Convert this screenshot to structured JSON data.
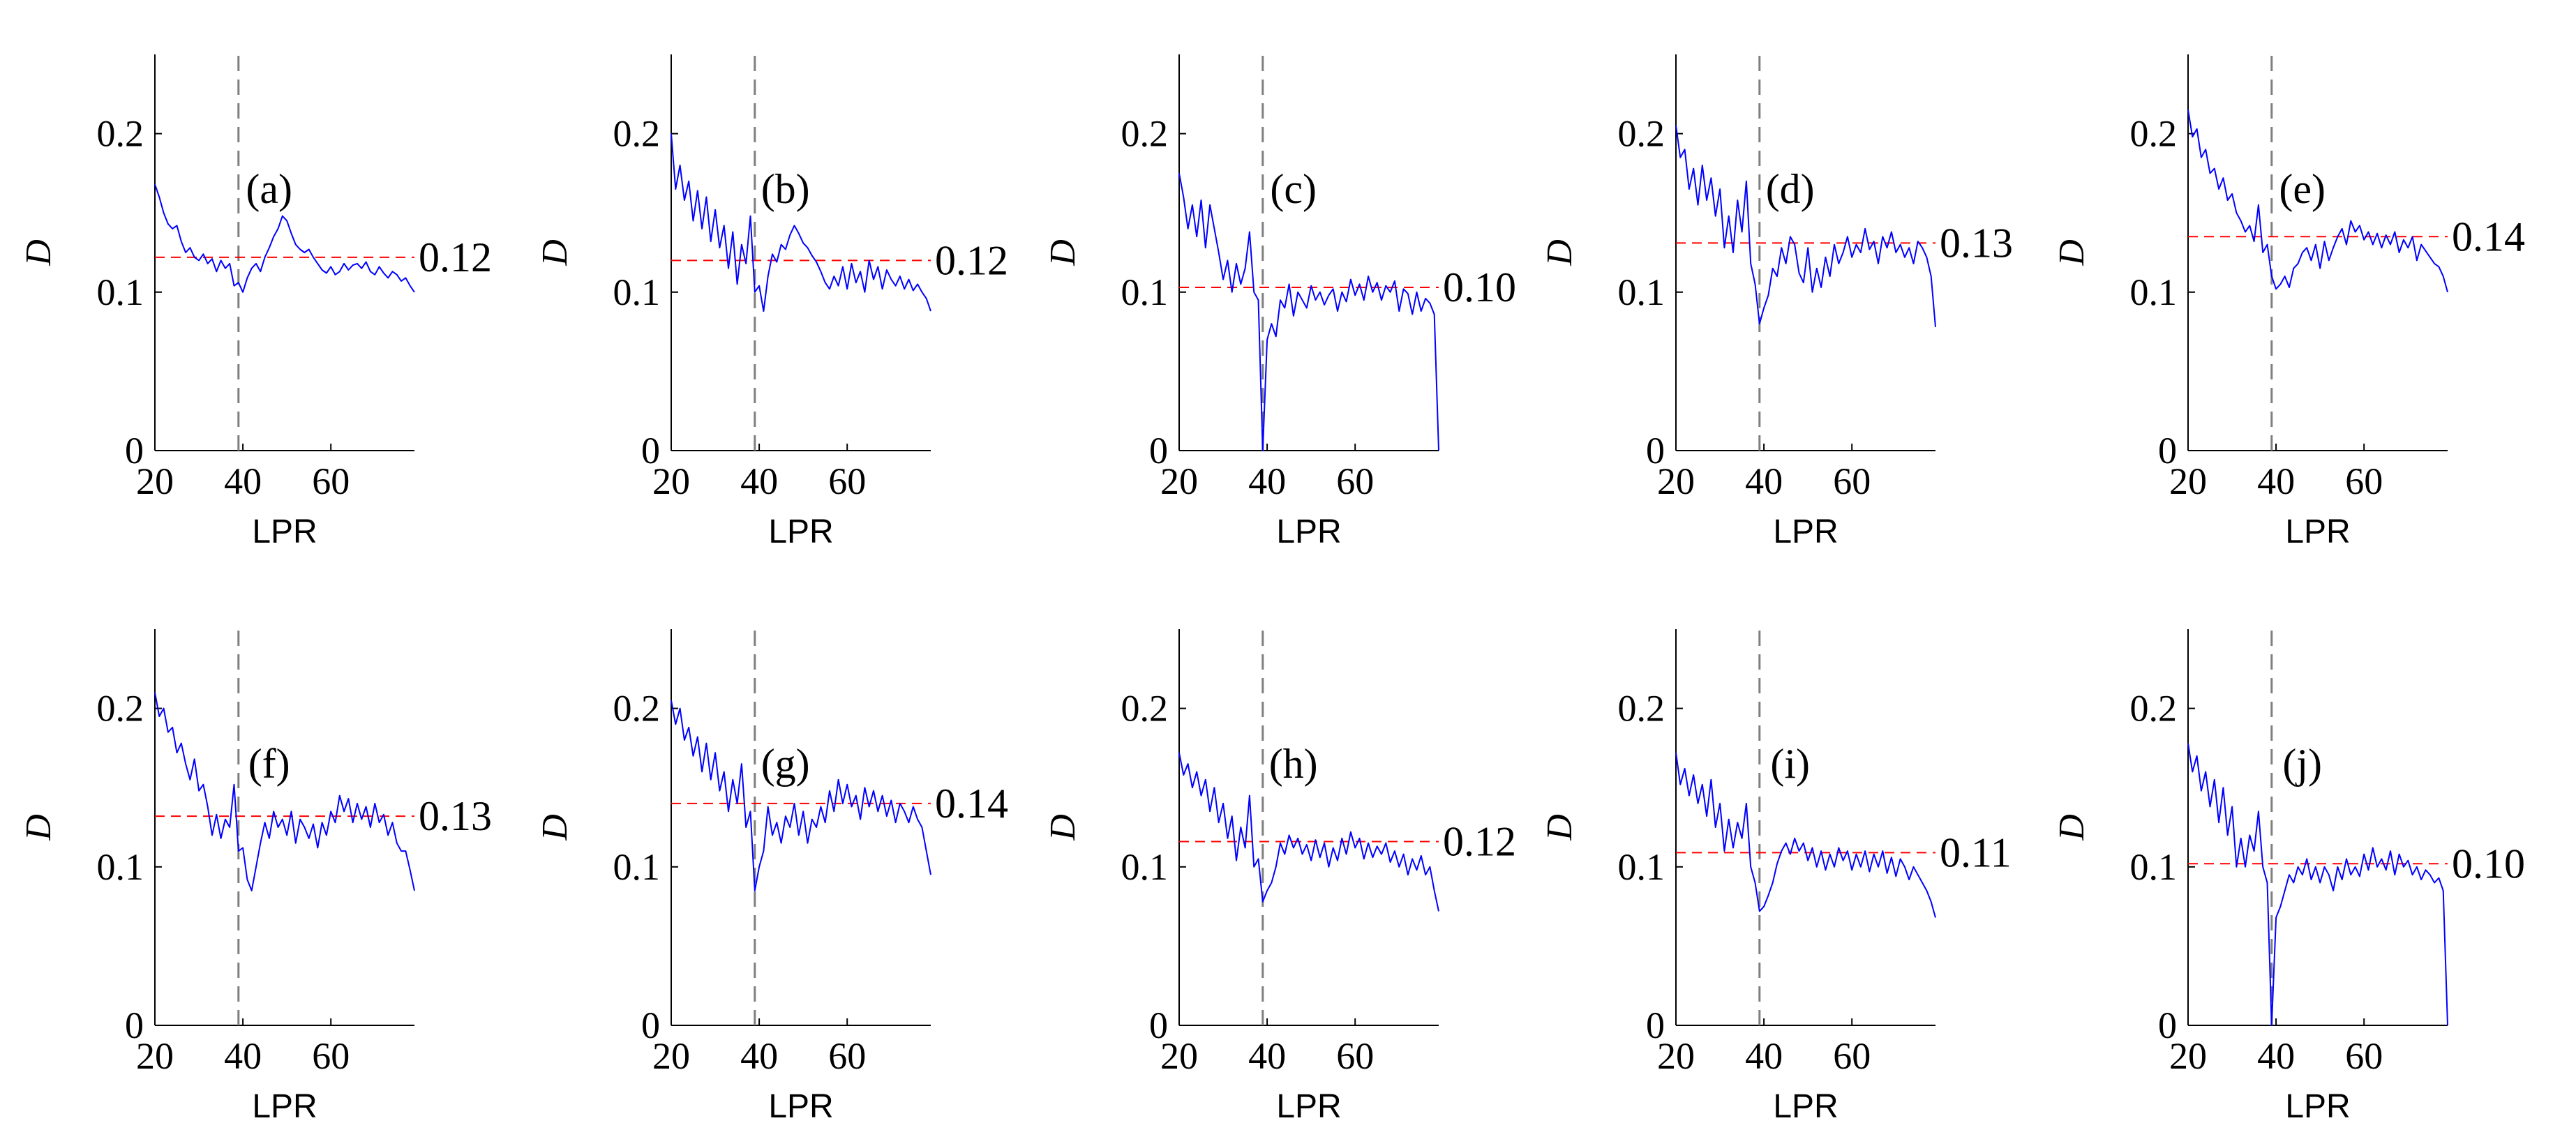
{
  "figure": {
    "background": "#ffffff",
    "axis_color": "#000000",
    "series_color": "#0000ff",
    "ref_line_color": "#ff0000",
    "vline_color": "#7f7f7f"
  },
  "chart_data": [
    {
      "type": "line",
      "panel": "(a)",
      "xlabel": "LPR",
      "ylabel": "D",
      "xlim": [
        20,
        79
      ],
      "ylim": [
        0,
        0.25
      ],
      "xticks": [
        "20",
        "40",
        "60"
      ],
      "yticks": [
        "0",
        "0.1",
        "0.2"
      ],
      "vline_x": 39,
      "ref_value": 0.122,
      "ref_label": "0.12",
      "x_start": 20,
      "x_step": 1,
      "y": [
        0.168,
        0.16,
        0.15,
        0.143,
        0.14,
        0.142,
        0.132,
        0.125,
        0.128,
        0.122,
        0.12,
        0.124,
        0.118,
        0.121,
        0.113,
        0.12,
        0.115,
        0.118,
        0.104,
        0.106,
        0.1,
        0.109,
        0.115,
        0.118,
        0.113,
        0.122,
        0.128,
        0.135,
        0.14,
        0.148,
        0.145,
        0.137,
        0.13,
        0.127,
        0.125,
        0.127,
        0.122,
        0.118,
        0.114,
        0.112,
        0.116,
        0.111,
        0.113,
        0.118,
        0.114,
        0.117,
        0.118,
        0.115,
        0.119,
        0.113,
        0.111,
        0.116,
        0.112,
        0.109,
        0.113,
        0.111,
        0.107,
        0.109,
        0.104,
        0.1
      ]
    },
    {
      "type": "line",
      "panel": "(b)",
      "xlabel": "LPR",
      "ylabel": "D",
      "xlim": [
        20,
        79
      ],
      "ylim": [
        0,
        0.25
      ],
      "xticks": [
        "20",
        "40",
        "60"
      ],
      "yticks": [
        "0",
        "0.1",
        "0.2"
      ],
      "vline_x": 39,
      "ref_value": 0.12,
      "ref_label": "0.12",
      "x_start": 20,
      "x_step": 1,
      "y": [
        0.2,
        0.165,
        0.18,
        0.158,
        0.17,
        0.145,
        0.164,
        0.14,
        0.16,
        0.132,
        0.152,
        0.128,
        0.142,
        0.115,
        0.138,
        0.105,
        0.13,
        0.118,
        0.148,
        0.1,
        0.104,
        0.088,
        0.11,
        0.124,
        0.119,
        0.13,
        0.127,
        0.136,
        0.142,
        0.137,
        0.131,
        0.128,
        0.123,
        0.119,
        0.113,
        0.106,
        0.102,
        0.11,
        0.104,
        0.116,
        0.102,
        0.118,
        0.106,
        0.113,
        0.1,
        0.12,
        0.108,
        0.116,
        0.102,
        0.114,
        0.108,
        0.104,
        0.11,
        0.102,
        0.108,
        0.101,
        0.105,
        0.1,
        0.096,
        0.088
      ]
    },
    {
      "type": "line",
      "panel": "(c)",
      "xlabel": "LPR",
      "ylabel": "D",
      "xlim": [
        20,
        79
      ],
      "ylim": [
        0,
        0.25
      ],
      "xticks": [
        "20",
        "40",
        "60"
      ],
      "yticks": [
        "0",
        "0.1",
        "0.2"
      ],
      "vline_x": 39,
      "ref_value": 0.103,
      "ref_label": "0.10",
      "x_start": 20,
      "x_step": 1,
      "y": [
        0.175,
        0.16,
        0.14,
        0.155,
        0.135,
        0.158,
        0.128,
        0.155,
        0.14,
        0.125,
        0.108,
        0.12,
        0.1,
        0.118,
        0.105,
        0.115,
        0.138,
        0.1,
        0.095,
        0.0,
        0.07,
        0.08,
        0.072,
        0.095,
        0.09,
        0.105,
        0.085,
        0.1,
        0.095,
        0.09,
        0.104,
        0.095,
        0.1,
        0.092,
        0.098,
        0.102,
        0.088,
        0.1,
        0.094,
        0.108,
        0.098,
        0.105,
        0.095,
        0.11,
        0.1,
        0.106,
        0.095,
        0.104,
        0.1,
        0.107,
        0.088,
        0.102,
        0.099,
        0.086,
        0.1,
        0.088,
        0.096,
        0.093,
        0.086,
        0.0
      ]
    },
    {
      "type": "line",
      "panel": "(d)",
      "xlabel": "LPR",
      "ylabel": "D",
      "xlim": [
        20,
        79
      ],
      "ylim": [
        0,
        0.25
      ],
      "xticks": [
        "20",
        "40",
        "60"
      ],
      "yticks": [
        "0",
        "0.1",
        "0.2"
      ],
      "vline_x": 39,
      "ref_value": 0.131,
      "ref_label": "0.13",
      "x_start": 20,
      "x_step": 1,
      "y": [
        0.205,
        0.185,
        0.19,
        0.165,
        0.178,
        0.155,
        0.18,
        0.158,
        0.172,
        0.148,
        0.165,
        0.128,
        0.148,
        0.125,
        0.158,
        0.138,
        0.17,
        0.118,
        0.105,
        0.08,
        0.09,
        0.098,
        0.115,
        0.11,
        0.128,
        0.118,
        0.135,
        0.13,
        0.112,
        0.106,
        0.128,
        0.1,
        0.115,
        0.103,
        0.122,
        0.11,
        0.13,
        0.118,
        0.125,
        0.135,
        0.122,
        0.13,
        0.125,
        0.14,
        0.127,
        0.132,
        0.118,
        0.135,
        0.128,
        0.138,
        0.125,
        0.13,
        0.122,
        0.128,
        0.118,
        0.132,
        0.128,
        0.122,
        0.11,
        0.078
      ]
    },
    {
      "type": "line",
      "panel": "(e)",
      "xlabel": "LPR",
      "ylabel": "D",
      "xlim": [
        20,
        79
      ],
      "ylim": [
        0,
        0.25
      ],
      "xticks": [
        "20",
        "40",
        "60"
      ],
      "yticks": [
        "0",
        "0.1",
        "0.2"
      ],
      "vline_x": 39,
      "ref_value": 0.135,
      "ref_label": "0.14",
      "x_start": 20,
      "x_step": 1,
      "y": [
        0.215,
        0.198,
        0.203,
        0.185,
        0.19,
        0.175,
        0.178,
        0.165,
        0.172,
        0.158,
        0.162,
        0.15,
        0.145,
        0.138,
        0.142,
        0.132,
        0.155,
        0.125,
        0.13,
        0.11,
        0.102,
        0.105,
        0.11,
        0.103,
        0.115,
        0.118,
        0.125,
        0.128,
        0.12,
        0.13,
        0.115,
        0.132,
        0.12,
        0.128,
        0.135,
        0.14,
        0.13,
        0.145,
        0.138,
        0.142,
        0.133,
        0.138,
        0.13,
        0.137,
        0.128,
        0.136,
        0.13,
        0.138,
        0.125,
        0.133,
        0.128,
        0.135,
        0.12,
        0.13,
        0.126,
        0.122,
        0.118,
        0.116,
        0.11,
        0.1
      ]
    },
    {
      "type": "line",
      "panel": "(f)",
      "xlabel": "LPR",
      "ylabel": "D",
      "xlim": [
        20,
        79
      ],
      "ylim": [
        0,
        0.25
      ],
      "xticks": [
        "20",
        "40",
        "60"
      ],
      "yticks": [
        "0",
        "0.1",
        "0.2"
      ],
      "vline_x": 39,
      "ref_value": 0.132,
      "ref_label": "0.13",
      "x_start": 20,
      "x_step": 1,
      "y": [
        0.21,
        0.195,
        0.2,
        0.185,
        0.188,
        0.172,
        0.178,
        0.165,
        0.155,
        0.168,
        0.148,
        0.152,
        0.138,
        0.12,
        0.133,
        0.118,
        0.13,
        0.125,
        0.152,
        0.11,
        0.112,
        0.092,
        0.085,
        0.1,
        0.115,
        0.128,
        0.118,
        0.135,
        0.125,
        0.13,
        0.12,
        0.135,
        0.115,
        0.13,
        0.125,
        0.118,
        0.127,
        0.112,
        0.128,
        0.12,
        0.135,
        0.128,
        0.145,
        0.135,
        0.143,
        0.128,
        0.14,
        0.13,
        0.138,
        0.125,
        0.14,
        0.128,
        0.133,
        0.12,
        0.128,
        0.115,
        0.11,
        0.11,
        0.098,
        0.085
      ]
    },
    {
      "type": "line",
      "panel": "(g)",
      "xlabel": "LPR",
      "ylabel": "D",
      "xlim": [
        20,
        79
      ],
      "ylim": [
        0,
        0.25
      ],
      "xticks": [
        "20",
        "40",
        "60"
      ],
      "yticks": [
        "0",
        "0.1",
        "0.2"
      ],
      "vline_x": 39,
      "ref_value": 0.14,
      "ref_label": "0.14",
      "x_start": 20,
      "x_step": 1,
      "y": [
        0.205,
        0.19,
        0.2,
        0.18,
        0.188,
        0.17,
        0.182,
        0.16,
        0.178,
        0.155,
        0.172,
        0.148,
        0.16,
        0.135,
        0.155,
        0.14,
        0.165,
        0.125,
        0.135,
        0.085,
        0.1,
        0.11,
        0.138,
        0.12,
        0.128,
        0.115,
        0.132,
        0.125,
        0.14,
        0.12,
        0.135,
        0.115,
        0.13,
        0.125,
        0.138,
        0.128,
        0.148,
        0.135,
        0.155,
        0.14,
        0.152,
        0.138,
        0.145,
        0.13,
        0.15,
        0.138,
        0.148,
        0.135,
        0.145,
        0.132,
        0.142,
        0.128,
        0.14,
        0.135,
        0.128,
        0.138,
        0.13,
        0.125,
        0.11,
        0.095
      ]
    },
    {
      "type": "line",
      "panel": "(h)",
      "xlabel": "LPR",
      "ylabel": "D",
      "xlim": [
        20,
        79
      ],
      "ylim": [
        0,
        0.25
      ],
      "xticks": [
        "20",
        "40",
        "60"
      ],
      "yticks": [
        "0",
        "0.1",
        "0.2"
      ],
      "vline_x": 39,
      "ref_value": 0.116,
      "ref_label": "0.12",
      "x_start": 20,
      "x_step": 1,
      "y": [
        0.172,
        0.158,
        0.165,
        0.15,
        0.16,
        0.145,
        0.155,
        0.135,
        0.15,
        0.128,
        0.14,
        0.118,
        0.132,
        0.104,
        0.125,
        0.112,
        0.145,
        0.1,
        0.105,
        0.078,
        0.085,
        0.09,
        0.1,
        0.115,
        0.108,
        0.12,
        0.112,
        0.118,
        0.108,
        0.114,
        0.104,
        0.117,
        0.106,
        0.115,
        0.1,
        0.112,
        0.104,
        0.118,
        0.108,
        0.122,
        0.112,
        0.118,
        0.105,
        0.115,
        0.106,
        0.113,
        0.108,
        0.115,
        0.103,
        0.11,
        0.1,
        0.108,
        0.095,
        0.105,
        0.098,
        0.107,
        0.095,
        0.1,
        0.085,
        0.072
      ]
    },
    {
      "type": "line",
      "panel": "(i)",
      "xlabel": "LPR",
      "ylabel": "D",
      "xlim": [
        20,
        79
      ],
      "ylim": [
        0,
        0.25
      ],
      "xticks": [
        "20",
        "40",
        "60"
      ],
      "yticks": [
        "0",
        "0.1",
        "0.2"
      ],
      "vline_x": 39,
      "ref_value": 0.109,
      "ref_label": "0.11",
      "x_start": 20,
      "x_step": 1,
      "y": [
        0.172,
        0.152,
        0.162,
        0.145,
        0.158,
        0.14,
        0.152,
        0.132,
        0.155,
        0.125,
        0.14,
        0.11,
        0.13,
        0.112,
        0.128,
        0.118,
        0.14,
        0.1,
        0.09,
        0.072,
        0.075,
        0.082,
        0.09,
        0.102,
        0.11,
        0.115,
        0.108,
        0.118,
        0.11,
        0.115,
        0.104,
        0.112,
        0.1,
        0.11,
        0.098,
        0.108,
        0.1,
        0.112,
        0.104,
        0.11,
        0.098,
        0.108,
        0.1,
        0.11,
        0.097,
        0.108,
        0.1,
        0.11,
        0.096,
        0.106,
        0.094,
        0.105,
        0.1,
        0.092,
        0.1,
        0.095,
        0.09,
        0.085,
        0.078,
        0.068
      ]
    },
    {
      "type": "line",
      "panel": "(j)",
      "xlabel": "LPR",
      "ylabel": "D",
      "xlim": [
        20,
        79
      ],
      "ylim": [
        0,
        0.25
      ],
      "xticks": [
        "20",
        "40",
        "60"
      ],
      "yticks": [
        "0",
        "0.1",
        "0.2"
      ],
      "vline_x": 39,
      "ref_value": 0.102,
      "ref_label": "0.10",
      "x_start": 20,
      "x_step": 1,
      "y": [
        0.178,
        0.16,
        0.17,
        0.148,
        0.16,
        0.138,
        0.155,
        0.128,
        0.15,
        0.12,
        0.138,
        0.1,
        0.118,
        0.1,
        0.12,
        0.11,
        0.135,
        0.1,
        0.09,
        0.0,
        0.068,
        0.075,
        0.085,
        0.095,
        0.09,
        0.1,
        0.095,
        0.105,
        0.092,
        0.1,
        0.09,
        0.1,
        0.095,
        0.085,
        0.1,
        0.092,
        0.105,
        0.095,
        0.1,
        0.094,
        0.108,
        0.098,
        0.112,
        0.1,
        0.105,
        0.098,
        0.11,
        0.095,
        0.108,
        0.1,
        0.104,
        0.095,
        0.1,
        0.092,
        0.098,
        0.095,
        0.09,
        0.093,
        0.085,
        0.0
      ]
    }
  ]
}
